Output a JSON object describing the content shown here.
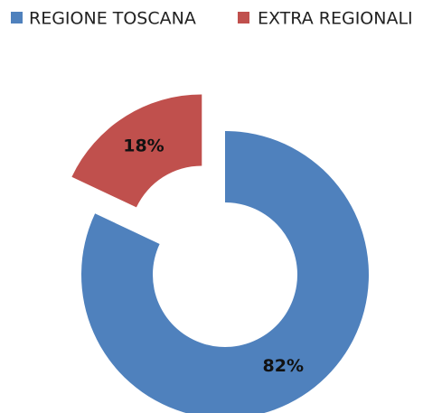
{
  "chart_data": {
    "type": "donut",
    "categories": [
      "REGIONE TOSCANA",
      "EXTRA REGIONALI"
    ],
    "values": [
      82,
      18
    ],
    "value_labels": [
      "82%",
      "18%"
    ],
    "colors": [
      "#4f81bd",
      "#c0504d"
    ],
    "explode": [
      false,
      true
    ],
    "legend": "top"
  }
}
